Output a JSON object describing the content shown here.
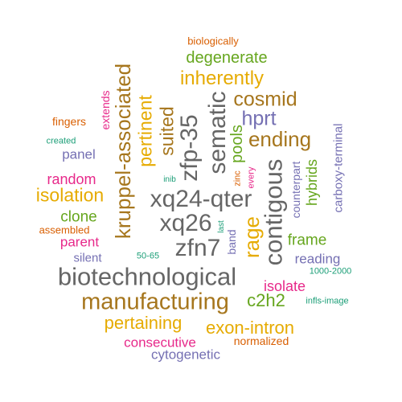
{
  "words": [
    {
      "text": "biologically",
      "color": "#d95f02"
    },
    {
      "text": "degenerate",
      "color": "#66a61e"
    },
    {
      "text": "inherently",
      "color": "#e6ab02"
    },
    {
      "text": "cosmid",
      "color": "#a6761d"
    },
    {
      "text": "hprt",
      "color": "#7570b3"
    },
    {
      "text": "ending",
      "color": "#a6761d"
    },
    {
      "text": "fingers",
      "color": "#d95f02"
    },
    {
      "text": "created",
      "color": "#1b9e77"
    },
    {
      "text": "panel",
      "color": "#7570b3"
    },
    {
      "text": "random",
      "color": "#e7298a"
    },
    {
      "text": "isolation",
      "color": "#e6ab02"
    },
    {
      "text": "clone",
      "color": "#66a61e"
    },
    {
      "text": "assembled",
      "color": "#d95f02"
    },
    {
      "text": "parent",
      "color": "#e7298a"
    },
    {
      "text": "silent",
      "color": "#7570b3"
    },
    {
      "text": "50-65",
      "color": "#1b9e77"
    },
    {
      "text": "biotechnological",
      "color": "#666666"
    },
    {
      "text": "manufacturing",
      "color": "#a6761d"
    },
    {
      "text": "c2h2",
      "color": "#66a61e"
    },
    {
      "text": "pertaining",
      "color": "#e6ab02"
    },
    {
      "text": "exon-intron",
      "color": "#e6ab02"
    },
    {
      "text": "consecutive",
      "color": "#e7298a"
    },
    {
      "text": "normalized",
      "color": "#d95f02"
    },
    {
      "text": "cytogenetic",
      "color": "#7570b3"
    },
    {
      "text": "xq24-qter",
      "color": "#666666"
    },
    {
      "text": "xq26",
      "color": "#666666"
    },
    {
      "text": "zfn7",
      "color": "#666666"
    },
    {
      "text": "frame",
      "color": "#66a61e"
    },
    {
      "text": "reading",
      "color": "#7570b3"
    },
    {
      "text": "1000-2000",
      "color": "#1b9e77"
    },
    {
      "text": "isolate",
      "color": "#e7298a"
    },
    {
      "text": "infls-image",
      "color": "#1b9e77"
    },
    {
      "text": "inib",
      "color": "#1b9e77"
    },
    {
      "text": "extends",
      "color": "#e7298a"
    },
    {
      "text": "kruppel-associated",
      "color": "#a6761d"
    },
    {
      "text": "pertinent",
      "color": "#e6ab02"
    },
    {
      "text": "suited",
      "color": "#a6761d"
    },
    {
      "text": "zfp-35",
      "color": "#666666"
    },
    {
      "text": "sematic",
      "color": "#666666"
    },
    {
      "text": "pools",
      "color": "#66a61e"
    },
    {
      "text": "zinc",
      "color": "#d95f02"
    },
    {
      "text": "every",
      "color": "#e7298a"
    },
    {
      "text": "last",
      "color": "#1b9e77"
    },
    {
      "text": "band",
      "color": "#7570b3"
    },
    {
      "text": "rage",
      "color": "#e6ab02"
    },
    {
      "text": "contigous",
      "color": "#666666"
    },
    {
      "text": "counterpart",
      "color": "#7570b3"
    },
    {
      "text": "hybrids",
      "color": "#66a61e"
    },
    {
      "text": "carboxy-terminal",
      "color": "#7570b3"
    }
  ]
}
